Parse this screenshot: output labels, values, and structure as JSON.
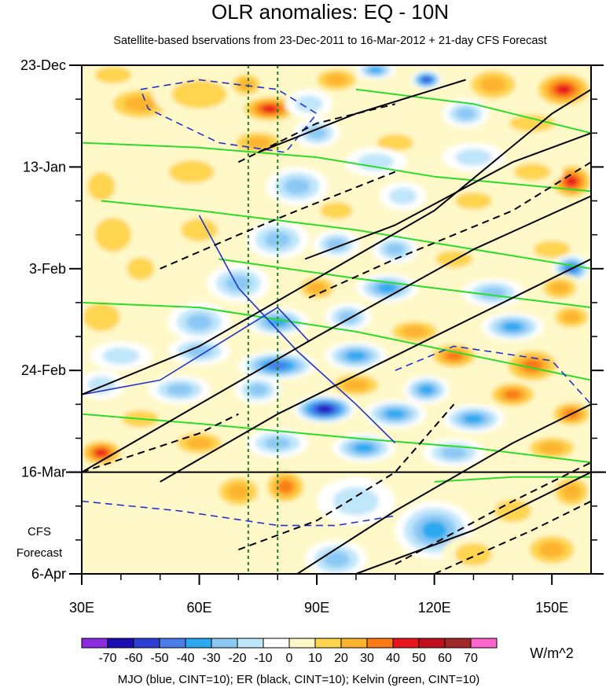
{
  "chart_data": {
    "type": "heatmap",
    "title": "OLR anomalies: EQ - 10N",
    "subtitle": "Satellite-based bservations from 23-Dec-2011 to 16-Mar-2012 + 21-day CFS Forecast",
    "x_axis": {
      "range": [
        30,
        160
      ],
      "unit": "degrees East longitude",
      "tick_values": [
        30,
        60,
        90,
        120,
        150
      ],
      "tick_labels": [
        "30E",
        "60E",
        "90E",
        "120E",
        "150E"
      ]
    },
    "y_axis": {
      "range_days": [
        0,
        105
      ],
      "direction": "time increases downward",
      "tick_days": [
        0,
        21,
        42,
        63,
        84,
        105
      ],
      "tick_labels": [
        "23-Dec",
        "13-Jan",
        "3-Feb",
        "24-Feb",
        "16-Mar",
        "6-Apr"
      ],
      "forecast_start_day": 84,
      "forecast_label_line1": "CFS",
      "forecast_label_line2": "Forecast"
    },
    "reference_longitudes": [
      72.5,
      80
    ],
    "colorbar": {
      "unit": "W/m^2",
      "levels": [
        -70,
        -60,
        -50,
        -40,
        -30,
        -20,
        -10,
        0,
        10,
        20,
        30,
        40,
        50,
        60,
        70
      ],
      "labels": [
        "-70",
        "-60",
        "-50",
        "-40",
        "-30",
        "-20",
        "-10",
        "0",
        "10",
        "20",
        "30",
        "40",
        "50",
        "60",
        "70"
      ],
      "colors": [
        "#8a2be2",
        "#1a0db3",
        "#2d3fd6",
        "#4a7de8",
        "#2aa9f0",
        "#8cc8f4",
        "#c0e6fa",
        "#ffffff",
        "#fff8c8",
        "#ffd44f",
        "#fdb32f",
        "#fa7a14",
        "#e8141c",
        "#c00f1e",
        "#a02828",
        "#ff66cc"
      ]
    },
    "footer": "MJO (blue, CINT=10); ER (black, CINT=10); Kelvin (green, CINT=10)",
    "blobs": [
      {
        "lon": 38,
        "day": 2,
        "v": 25,
        "rl": 8,
        "rd": 3
      },
      {
        "lon": 45,
        "day": 8,
        "v": 30,
        "rl": 10,
        "rd": 4
      },
      {
        "lon": 60,
        "day": 6,
        "v": 20,
        "rl": 12,
        "rd": 5
      },
      {
        "lon": 78,
        "day": 9,
        "v": 50,
        "rl": 8,
        "rd": 3
      },
      {
        "lon": 72,
        "day": 4,
        "v": 30,
        "rl": 5,
        "rd": 3
      },
      {
        "lon": 95,
        "day": 3,
        "v": 35,
        "rl": 7,
        "rd": 3
      },
      {
        "lon": 105,
        "day": 1,
        "v": -40,
        "rl": 5,
        "rd": 2
      },
      {
        "lon": 118,
        "day": 3,
        "v": -60,
        "rl": 4,
        "rd": 2
      },
      {
        "lon": 135,
        "day": 4,
        "v": 30,
        "rl": 8,
        "rd": 4
      },
      {
        "lon": 153,
        "day": 5,
        "v": 50,
        "rl": 8,
        "rd": 4
      },
      {
        "lon": 88,
        "day": 8,
        "v": -20,
        "rl": 6,
        "rd": 3
      },
      {
        "lon": 128,
        "day": 10,
        "v": -30,
        "rl": 6,
        "rd": 3
      },
      {
        "lon": 145,
        "day": 12,
        "v": 25,
        "rl": 10,
        "rd": 3
      },
      {
        "lon": 90,
        "day": 14,
        "v": -30,
        "rl": 6,
        "rd": 3
      },
      {
        "lon": 75,
        "day": 16,
        "v": 35,
        "rl": 8,
        "rd": 3
      },
      {
        "lon": 110,
        "day": 16,
        "v": 20,
        "rl": 8,
        "rd": 3
      },
      {
        "lon": 40,
        "day": 18,
        "v": 15,
        "rl": 8,
        "rd": 5
      },
      {
        "lon": 105,
        "day": 20,
        "v": -25,
        "rl": 8,
        "rd": 3
      },
      {
        "lon": 130,
        "day": 19,
        "v": -25,
        "rl": 8,
        "rd": 3
      },
      {
        "lon": 155,
        "day": 24,
        "v": 55,
        "rl": 6,
        "rd": 4
      },
      {
        "lon": 145,
        "day": 22,
        "v": 25,
        "rl": 8,
        "rd": 3
      },
      {
        "lon": 35,
        "day": 25,
        "v": 25,
        "rl": 6,
        "rd": 5
      },
      {
        "lon": 58,
        "day": 22,
        "v": 20,
        "rl": 10,
        "rd": 4
      },
      {
        "lon": 85,
        "day": 25,
        "v": -30,
        "rl": 8,
        "rd": 4
      },
      {
        "lon": 112,
        "day": 27,
        "v": -25,
        "rl": 6,
        "rd": 3
      },
      {
        "lon": 95,
        "day": 30,
        "v": 20,
        "rl": 7,
        "rd": 3
      },
      {
        "lon": 130,
        "day": 28,
        "v": 20,
        "rl": 8,
        "rd": 3
      },
      {
        "lon": 38,
        "day": 35,
        "v": 25,
        "rl": 8,
        "rd": 6
      },
      {
        "lon": 60,
        "day": 34,
        "v": 20,
        "rl": 8,
        "rd": 4
      },
      {
        "lon": 80,
        "day": 36,
        "v": -30,
        "rl": 8,
        "rd": 4
      },
      {
        "lon": 95,
        "day": 37,
        "v": -35,
        "rl": 6,
        "rd": 3
      },
      {
        "lon": 110,
        "day": 38,
        "v": -30,
        "rl": 6,
        "rd": 3
      },
      {
        "lon": 125,
        "day": 40,
        "v": 25,
        "rl": 8,
        "rd": 3
      },
      {
        "lon": 150,
        "day": 38,
        "v": 25,
        "rl": 8,
        "rd": 3
      },
      {
        "lon": 155,
        "day": 42,
        "v": -50,
        "rl": 5,
        "rd": 3
      },
      {
        "lon": 45,
        "day": 42,
        "v": 25,
        "rl": 6,
        "rd": 4
      },
      {
        "lon": 70,
        "day": 45,
        "v": -30,
        "rl": 8,
        "rd": 4
      },
      {
        "lon": 90,
        "day": 46,
        "v": 30,
        "rl": 6,
        "rd": 3
      },
      {
        "lon": 108,
        "day": 46,
        "v": -40,
        "rl": 8,
        "rd": 3
      },
      {
        "lon": 135,
        "day": 47,
        "v": -35,
        "rl": 8,
        "rd": 3
      },
      {
        "lon": 152,
        "day": 46,
        "v": 35,
        "rl": 6,
        "rd": 3
      },
      {
        "lon": 35,
        "day": 52,
        "v": 20,
        "rl": 8,
        "rd": 5
      },
      {
        "lon": 60,
        "day": 53,
        "v": -35,
        "rl": 8,
        "rd": 4
      },
      {
        "lon": 80,
        "day": 53,
        "v": -45,
        "rl": 8,
        "rd": 3
      },
      {
        "lon": 98,
        "day": 52,
        "v": -35,
        "rl": 6,
        "rd": 3
      },
      {
        "lon": 115,
        "day": 55,
        "v": 30,
        "rl": 8,
        "rd": 3
      },
      {
        "lon": 140,
        "day": 54,
        "v": -45,
        "rl": 8,
        "rd": 3
      },
      {
        "lon": 155,
        "day": 52,
        "v": 30,
        "rl": 6,
        "rd": 3
      },
      {
        "lon": 40,
        "day": 60,
        "v": -25,
        "rl": 8,
        "rd": 3
      },
      {
        "lon": 60,
        "day": 59,
        "v": -30,
        "rl": 8,
        "rd": 3
      },
      {
        "lon": 80,
        "day": 62,
        "v": -50,
        "rl": 10,
        "rd": 3
      },
      {
        "lon": 100,
        "day": 60,
        "v": -40,
        "rl": 8,
        "rd": 3
      },
      {
        "lon": 125,
        "day": 60,
        "v": 40,
        "rl": 7,
        "rd": 3
      },
      {
        "lon": 145,
        "day": 62,
        "v": 40,
        "rl": 8,
        "rd": 4
      },
      {
        "lon": 35,
        "day": 66,
        "v": -20,
        "rl": 6,
        "rd": 3
      },
      {
        "lon": 55,
        "day": 67,
        "v": -30,
        "rl": 8,
        "rd": 3
      },
      {
        "lon": 75,
        "day": 67,
        "v": -35,
        "rl": 6,
        "rd": 3
      },
      {
        "lon": 100,
        "day": 66,
        "v": 30,
        "rl": 8,
        "rd": 3
      },
      {
        "lon": 118,
        "day": 67,
        "v": -45,
        "rl": 6,
        "rd": 3
      },
      {
        "lon": 140,
        "day": 68,
        "v": 45,
        "rl": 7,
        "rd": 3
      },
      {
        "lon": 92,
        "day": 71,
        "v": -70,
        "rl": 8,
        "rd": 3
      },
      {
        "lon": 110,
        "day": 72,
        "v": -45,
        "rl": 8,
        "rd": 3
      },
      {
        "lon": 130,
        "day": 73,
        "v": -40,
        "rl": 8,
        "rd": 3
      },
      {
        "lon": 155,
        "day": 72,
        "v": 45,
        "rl": 6,
        "rd": 3
      },
      {
        "lon": 45,
        "day": 73,
        "v": 20,
        "rl": 8,
        "rd": 3
      },
      {
        "lon": 35,
        "day": 80,
        "v": 50,
        "rl": 6,
        "rd": 3
      },
      {
        "lon": 60,
        "day": 78,
        "v": 30,
        "rl": 8,
        "rd": 3
      },
      {
        "lon": 80,
        "day": 78,
        "v": -30,
        "rl": 8,
        "rd": 3
      },
      {
        "lon": 102,
        "day": 79,
        "v": -40,
        "rl": 8,
        "rd": 3
      },
      {
        "lon": 125,
        "day": 80,
        "v": -30,
        "rl": 8,
        "rd": 3
      },
      {
        "lon": 150,
        "day": 79,
        "v": 30,
        "rl": 8,
        "rd": 3
      },
      {
        "lon": 45,
        "day": 86,
        "v": 15,
        "rl": 12,
        "rd": 4
      },
      {
        "lon": 70,
        "day": 88,
        "v": 35,
        "rl": 7,
        "rd": 4
      },
      {
        "lon": 82,
        "day": 87,
        "v": 40,
        "rl": 6,
        "rd": 4
      },
      {
        "lon": 100,
        "day": 90,
        "v": -25,
        "rl": 10,
        "rd": 5
      },
      {
        "lon": 120,
        "day": 96,
        "v": -40,
        "rl": 10,
        "rd": 6
      },
      {
        "lon": 140,
        "day": 92,
        "v": 25,
        "rl": 8,
        "rd": 4
      },
      {
        "lon": 155,
        "day": 88,
        "v": 35,
        "rl": 6,
        "rd": 4
      },
      {
        "lon": 95,
        "day": 102,
        "v": -35,
        "rl": 8,
        "rd": 4
      },
      {
        "lon": 130,
        "day": 101,
        "v": 25,
        "rl": 8,
        "rd": 4
      },
      {
        "lon": 150,
        "day": 100,
        "v": 30,
        "rl": 8,
        "rd": 4
      },
      {
        "lon": 60,
        "day": 98,
        "v": 10,
        "rl": 15,
        "rd": 6
      }
    ],
    "contours": {
      "mjo_solid": [
        [
          [
            60,
            31
          ],
          [
            70,
            46
          ],
          [
            85,
            59
          ],
          [
            100,
            70
          ],
          [
            110,
            78
          ]
        ],
        [
          [
            30,
            68
          ],
          [
            50,
            65
          ],
          [
            68,
            56
          ],
          [
            80,
            50
          ],
          [
            88,
            57
          ]
        ]
      ],
      "mjo_dashed": [
        [
          [
            45,
            5
          ],
          [
            60,
            3
          ],
          [
            80,
            5
          ],
          [
            90,
            10
          ],
          [
            82,
            18
          ],
          [
            65,
            16
          ],
          [
            47,
            9
          ],
          [
            45,
            5
          ]
        ],
        [
          [
            30,
            90
          ],
          [
            55,
            92
          ],
          [
            80,
            95
          ],
          [
            95,
            95
          ],
          [
            110,
            93
          ]
        ],
        [
          [
            110,
            63
          ],
          [
            125,
            58
          ],
          [
            150,
            61
          ],
          [
            160,
            70
          ]
        ]
      ],
      "er_solid": [
        [
          [
            30,
            68
          ],
          [
            60,
            58
          ],
          [
            90,
            44
          ],
          [
            120,
            30
          ],
          [
            150,
            10
          ],
          [
            160,
            5
          ]
        ],
        [
          [
            30,
            84
          ],
          [
            60,
            70
          ],
          [
            90,
            56
          ],
          [
            130,
            38
          ],
          [
            160,
            27
          ]
        ],
        [
          [
            50,
            86
          ],
          [
            80,
            72
          ],
          [
            110,
            60
          ],
          [
            140,
            48
          ],
          [
            160,
            40
          ]
        ],
        [
          [
            85,
            105
          ],
          [
            110,
            92
          ],
          [
            140,
            78
          ],
          [
            160,
            70
          ]
        ],
        [
          [
            100,
            105
          ],
          [
            130,
            96
          ],
          [
            160,
            84
          ]
        ],
        [
          [
            75,
            18
          ],
          [
            100,
            10
          ],
          [
            120,
            5
          ],
          [
            128,
            3
          ]
        ],
        [
          [
            87,
            40
          ],
          [
            110,
            33
          ],
          [
            140,
            20
          ],
          [
            160,
            14
          ]
        ]
      ],
      "er_dashed": [
        [
          [
            30,
            84
          ],
          [
            45,
            80
          ],
          [
            60,
            76
          ],
          [
            70,
            72
          ]
        ],
        [
          [
            50,
            42
          ],
          [
            70,
            35
          ],
          [
            85,
            30
          ],
          [
            110,
            22
          ]
        ],
        [
          [
            70,
            100
          ],
          [
            90,
            94
          ],
          [
            110,
            84
          ],
          [
            125,
            70
          ]
        ],
        [
          [
            110,
            103
          ],
          [
            140,
            90
          ],
          [
            160,
            82
          ]
        ],
        [
          [
            120,
            105
          ],
          [
            145,
            96
          ],
          [
            160,
            90
          ]
        ],
        [
          [
            88,
            48
          ],
          [
            110,
            40
          ],
          [
            140,
            30
          ],
          [
            160,
            20
          ]
        ],
        [
          [
            70,
            20
          ],
          [
            90,
            12
          ],
          [
            110,
            8
          ]
        ]
      ],
      "kelvin": [
        [
          [
            30,
            49
          ],
          [
            60,
            50
          ],
          [
            100,
            55
          ],
          [
            130,
            60
          ],
          [
            160,
            65
          ]
        ],
        [
          [
            30,
            72
          ],
          [
            60,
            74
          ],
          [
            100,
            77
          ],
          [
            130,
            79
          ],
          [
            160,
            82
          ]
        ],
        [
          [
            30,
            16
          ],
          [
            60,
            17
          ],
          [
            90,
            19
          ],
          [
            120,
            23
          ],
          [
            160,
            26
          ]
        ],
        [
          [
            35,
            28
          ],
          [
            60,
            30
          ],
          [
            100,
            34
          ],
          [
            160,
            42
          ]
        ],
        [
          [
            65,
            40
          ],
          [
            100,
            44
          ],
          [
            130,
            47
          ],
          [
            160,
            50
          ]
        ],
        [
          [
            100,
            5
          ],
          [
            130,
            8
          ],
          [
            160,
            14
          ]
        ],
        [
          [
            120,
            86
          ],
          [
            140,
            85
          ],
          [
            160,
            85
          ]
        ]
      ]
    }
  }
}
